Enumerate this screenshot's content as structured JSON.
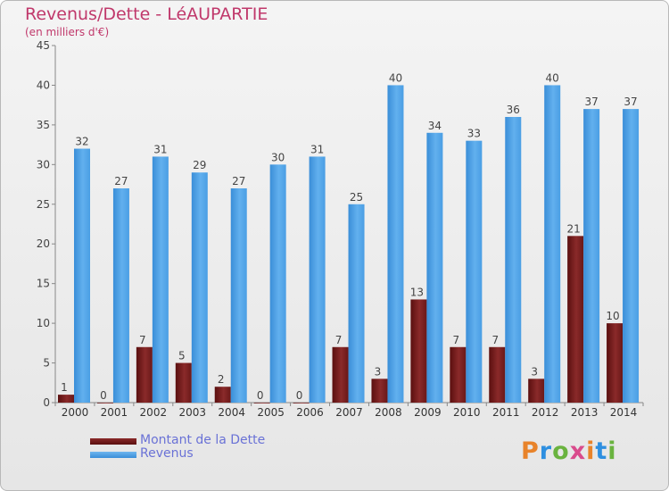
{
  "chart_data": {
    "type": "bar",
    "title": "Revenus/Dette - LéAUPARTIE",
    "subtitle": "(en milliers d'€)",
    "categories": [
      "2000",
      "2001",
      "2002",
      "2003",
      "2004",
      "2005",
      "2006",
      "2007",
      "2008",
      "2009",
      "2010",
      "2011",
      "2012",
      "2013",
      "2014"
    ],
    "series": [
      {
        "name": "Montant de la Dette",
        "values": [
          1,
          0,
          7,
          5,
          2,
          0,
          0,
          7,
          3,
          13,
          7,
          7,
          3,
          21,
          10
        ],
        "color": "#7a1f1f"
      },
      {
        "name": "Revenus",
        "values": [
          32,
          27,
          31,
          29,
          27,
          30,
          31,
          25,
          40,
          34,
          33,
          36,
          40,
          37,
          37
        ],
        "color": "#4da3e8"
      }
    ],
    "yticks": [
      0,
      5,
      10,
      15,
      20,
      25,
      30,
      35,
      40,
      45
    ],
    "ylim": [
      0,
      45
    ],
    "xlabel": "",
    "ylabel": "",
    "legend_position": "bottom-left"
  },
  "logo": {
    "text": "Proxiti",
    "colors": [
      "#e8832a",
      "#2e8fe0",
      "#6ab33f",
      "#d94b8c"
    ]
  }
}
